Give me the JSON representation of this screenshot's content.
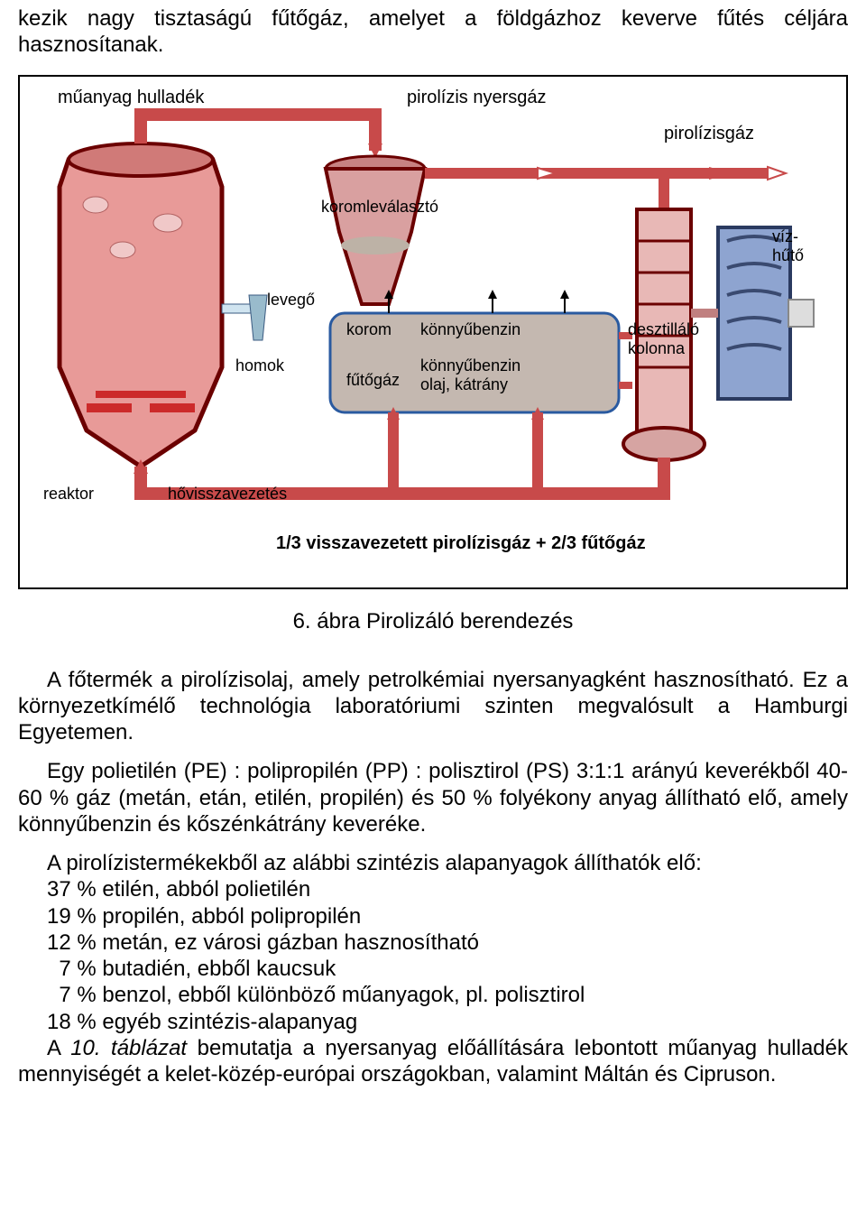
{
  "intro_text": "kezik nagy tisztaságú fűtőgáz, amelyet a földgázhoz keverve fűtés céljára hasznosítanak.",
  "diagram": {
    "labels": {
      "muanyag_hulladek": "műanyag hulladék",
      "pirolizis_nyersgaz": "pirolízis nyersgáz",
      "pirolizisgaz": "pirolízisgáz",
      "koromlevalaszto": "koromleválasztó",
      "vizhuto": "víz-\nhűtő",
      "levego": "levegő",
      "homok": "homok",
      "korom": "korom",
      "futogaz": "fűtőgáz",
      "konnyubenzin": "könnyűbenzin",
      "konnyubenzin_olaj": "könnyűbenzin\nolaj, kátrány",
      "desztillalo_kolonna": "desztilláló\nkolonna",
      "reaktor": "reaktor",
      "hovisszavezetes": "hővisszavezetés",
      "caption_inside": "1/3 visszavezetett pirolízisgáz + 2/3 fűtőgáz"
    },
    "colors": {
      "reactor_fill": "#e89a98",
      "reactor_border": "#6b0000",
      "separator_body": "#d9a0a0",
      "pipe": "#c84a4a",
      "cooler_fill": "#8ea4d0",
      "box_bg": "#c4b8b0",
      "box_border": "#2a5aa0",
      "column_fill": "#e8b8b6"
    }
  },
  "figure_caption": "6. ábra Pirolizáló berendezés",
  "para1": "A főtermék a pirolízisolaj, amely petrolkémiai nyersanyagként hasznosítható. Ez a környezetkímélő technológia laboratóriumi szinten megvalósult a Hamburgi Egyetemen.",
  "para2": "Egy polietilén (PE) : polipropilén (PP) : polisztirol (PS)  3:1:1 arányú keverékből 40-60 % gáz (metán, etán, etilén, propilén) és 50 % folyékony anyag állítható elő, amely könnyűbenzin és kőszénkátrány keveréke.",
  "para3_lead": "A pirolízistermékekből az alábbi szintézis alapanyagok állíthatók elő:",
  "list_items": [
    "37 % etilén, abból polietilén",
    "19 % propilén, abból polipropilén",
    "12 % metán, ez városi gázban hasznosítható",
    "  7 % butadién, ebből kaucsuk",
    "  7 % benzol, ebből különböző műanyagok, pl. polisztirol",
    "18 % egyéb szintézis-alapanyag"
  ],
  "para4": "A 10. táblázat bemutatja a nyersanyag előállítására lebontott műanyag hulladék mennyiségét a kelet-közép-európai országokban, valamint Máltán és Cipruson.",
  "para4_italic_phrase": "10. táblázat"
}
